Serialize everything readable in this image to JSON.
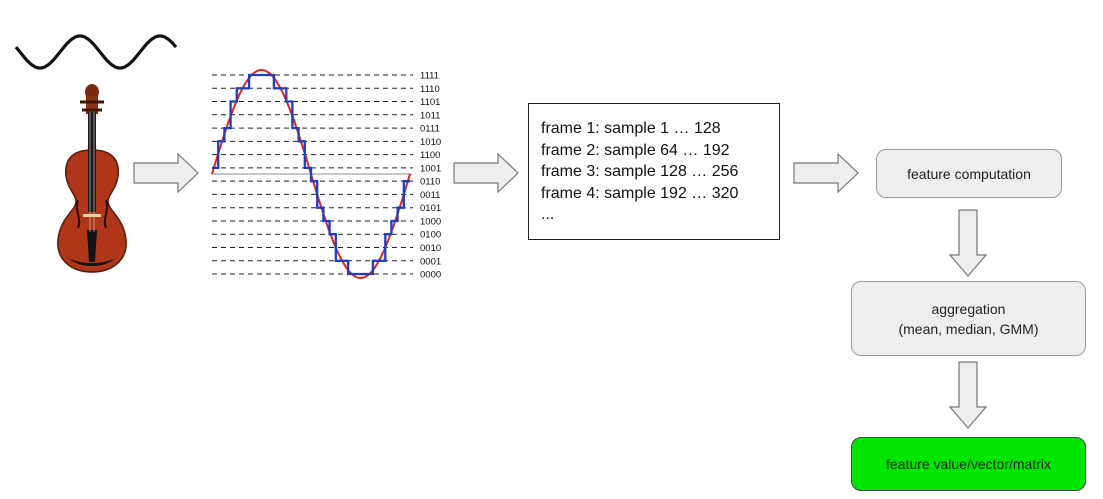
{
  "colors": {
    "analog_signal": "#dd2222",
    "quantized_signal": "#1f3fbf",
    "box_fill": "#eeeeee",
    "result_fill": "#00e600",
    "arrow_fill": "#eeeeee"
  },
  "icons": [
    "sine-wave-icon",
    "violin-icon"
  ],
  "quantization_levels": [
    "1111",
    "1110",
    "1101",
    "1011",
    "0111",
    "1010",
    "1100",
    "1001",
    "0110",
    "0011",
    "0101",
    "1000",
    "0100",
    "0010",
    "0001",
    "0000"
  ],
  "frames": [
    "frame 1: sample 1 … 128",
    "frame 2: sample 64 … 192",
    "frame 3: sample 128 … 256",
    "frame 4: sample 192 … 320",
    "..."
  ],
  "steps": {
    "feature": "feature computation",
    "aggregation_line1": "aggregation",
    "aggregation_line2": "(mean, median, GMM)",
    "result": "feature value/vector/matrix"
  }
}
